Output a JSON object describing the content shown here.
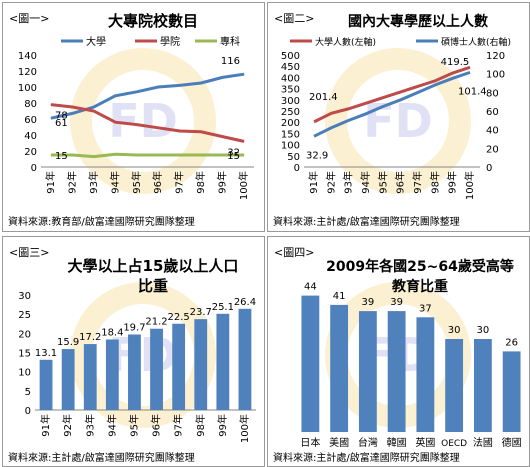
{
  "colors": {
    "blue": "#4a7ebb",
    "red": "#be4b48",
    "green": "#98b954",
    "bar": "#4f81bd",
    "axis": "#868686",
    "watermark_bg": "#f4d57a",
    "watermark_fd": "#c9c9ee"
  },
  "chart_data": [
    {
      "type": "line",
      "tag": "<圖一>",
      "title": "大專院校數目",
      "categories": [
        "91年",
        "92年",
        "93年",
        "94年",
        "95年",
        "96年",
        "97年",
        "98年",
        "99年",
        "100年"
      ],
      "ylim": [
        0,
        140
      ],
      "yticks": [
        0,
        20,
        40,
        60,
        80,
        100,
        120,
        140
      ],
      "legend_position": "top",
      "series": [
        {
          "name": "大學",
          "color": "#4a7ebb",
          "values": [
            61,
            67,
            75,
            89,
            94,
            100,
            102,
            105,
            112,
            116
          ]
        },
        {
          "name": "學院",
          "color": "#be4b48",
          "values": [
            78,
            75,
            70,
            56,
            53,
            49,
            45,
            44,
            38,
            32
          ]
        },
        {
          "name": "專科",
          "color": "#98b954",
          "values": [
            15,
            15,
            13,
            16,
            15,
            15,
            15,
            15,
            15,
            15
          ]
        }
      ],
      "data_labels": [
        {
          "series": 0,
          "index": 0,
          "text": "61"
        },
        {
          "series": 1,
          "index": 0,
          "text": "78"
        },
        {
          "series": 2,
          "index": 0,
          "text": "15"
        },
        {
          "series": 0,
          "index": 9,
          "text": "116"
        },
        {
          "series": 1,
          "index": 9,
          "text": "32"
        },
        {
          "series": 2,
          "index": 9,
          "text": "15"
        }
      ],
      "source": "資料來源:教育部/啟富達國際研究團隊整理"
    },
    {
      "type": "line",
      "tag": "<圖二>",
      "title": "國內大專學歷以上人數",
      "categories": [
        "91年",
        "92年",
        "93年",
        "94年",
        "95年",
        "96年",
        "97年",
        "98年",
        "99年",
        "100年"
      ],
      "ylim": [
        0,
        500
      ],
      "yticks": [
        0,
        50,
        100,
        150,
        200,
        250,
        300,
        350,
        400,
        450,
        500
      ],
      "ylim_right": [
        0,
        120
      ],
      "yticks_right": [
        0,
        20,
        40,
        60,
        80,
        100,
        120
      ],
      "legend_position": "top",
      "series": [
        {
          "name": "大學人數(左軸)",
          "color": "#be4b48",
          "axis": "left",
          "values": [
            201.4,
            240,
            260,
            285,
            310,
            335,
            360,
            385,
            419.5,
            445
          ]
        },
        {
          "name": "碩博士人數(右軸)",
          "color": "#4a7ebb",
          "axis": "right",
          "values": [
            32.9,
            42,
            50,
            57,
            65,
            72,
            80,
            88,
            95,
            101.4
          ]
        }
      ],
      "data_labels": [
        {
          "series": 0,
          "index": 0,
          "text": "201.4"
        },
        {
          "series": 0,
          "index": 8,
          "text": "419.5"
        },
        {
          "series": 1,
          "index": 0,
          "text": "32.9"
        },
        {
          "series": 1,
          "index": 9,
          "text": "101.4"
        }
      ],
      "source": "資料來源:主計處/啟富達國際研究團隊整理"
    },
    {
      "type": "bar",
      "tag": "<圖三>",
      "title": "大學以上占15歲以上人口",
      "title2": "比重",
      "categories": [
        "91年",
        "92年",
        "93年",
        "94年",
        "95年",
        "96年",
        "97年",
        "98年",
        "99年",
        "100年"
      ],
      "values": [
        13.1,
        15.9,
        17.2,
        18.4,
        19.7,
        21.2,
        22.5,
        23.7,
        25.1,
        26.4
      ],
      "labels": [
        "13.1",
        "15.9",
        "17.2",
        "18.4",
        "19.7",
        "21.2",
        "22.5",
        "23.7",
        "25.1",
        "26.4"
      ],
      "ylim": [
        0,
        30
      ],
      "yticks": [
        0,
        5,
        10,
        15,
        20,
        25,
        30
      ],
      "source": "資料來源:主計處/啟富達國際研究團隊整理"
    },
    {
      "type": "bar",
      "tag": "<圖四>",
      "title": "2009年各國25~64歲受高等",
      "title2": "教育比重",
      "categories": [
        "日本",
        "美國",
        "台灣",
        "韓國",
        "英國",
        "OECD",
        "法國",
        "德國"
      ],
      "values": [
        44,
        41,
        39,
        39,
        37,
        30,
        30,
        26
      ],
      "labels": [
        "44",
        "41",
        "39",
        "39",
        "37",
        "30",
        "30",
        "26"
      ],
      "ylim": [
        0,
        50
      ],
      "source": "資料來源:主計處/啟富達國際研究團隊整理"
    }
  ]
}
